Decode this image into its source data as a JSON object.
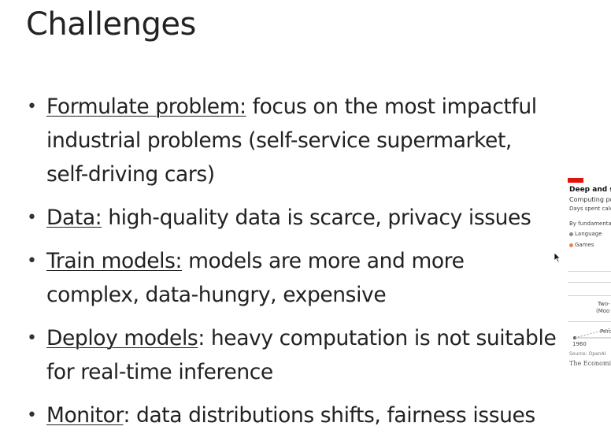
{
  "slide": {
    "title": "Challenges",
    "bullets": [
      {
        "term": "Formulate problem:",
        "text": " focus on the most impactful industrial problems (self-service supermarket, self-driving cars)"
      },
      {
        "term": "Data:",
        "text": " high-quality data is scarce, privacy issues"
      },
      {
        "term": "Train models:",
        "text": " models are more and more complex, data-hungry, expensive"
      },
      {
        "term": "Deploy models",
        "text": ": heavy computation is not suitable for real-time inference"
      },
      {
        "term": "Monitor",
        "text": ": data distributions shifts, fairness issues"
      }
    ]
  },
  "figure": {
    "title": "Deep and st",
    "subtitle": "Computing pov",
    "subtitle2": "Days spent calcu",
    "by_label": "By fundamental",
    "legend": [
      {
        "label": "Language",
        "color": "#8c8c8c"
      },
      {
        "label": "Games",
        "color": "#e8874a"
      }
    ],
    "annotation1": "Two-",
    "annotation2": "(Moo",
    "annotation3": "Perc",
    "year": "1960",
    "source": "Source: OpenAI",
    "publisher": "The Economist",
    "accent_color": "#e3120b"
  }
}
